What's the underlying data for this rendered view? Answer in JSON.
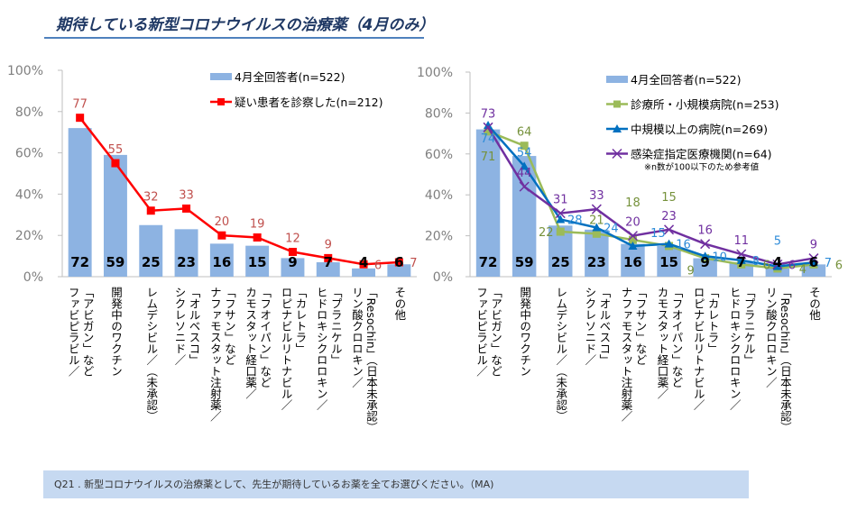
{
  "title": "期待している新型コロナウイルスの治療薬（4月のみ）",
  "footer": "Q21 . 新型コロナウイルスの治療薬として、先生が期待しているお薬を全てお選びください。（MA)",
  "chart_data": [
    {
      "type": "bar+line",
      "category_lines": [
        [
          "「アビガン」など",
          "ファビピラビル／"
        ],
        [
          "開発中のワクチン",
          ""
        ],
        [
          "レムデシビル／（未承認）",
          ""
        ],
        [
          "「オルベスコ」",
          "シクレソニド／"
        ],
        [
          "「フサン」など",
          "ナファモスタット注射薬／"
        ],
        [
          "「フオイパン」など",
          "カモスタット経口薬／"
        ],
        [
          "「カレトラ」",
          "ロピナビルリトナビル／"
        ],
        [
          "「プラニケル」",
          "ヒドロキシクロロキン／"
        ],
        [
          "「Resochin」（日本未承認）",
          "リン酸クロロキン／"
        ],
        [
          "その他",
          ""
        ]
      ],
      "y_ticks": [
        "0%",
        "20%",
        "40%",
        "60%",
        "80%",
        "100%"
      ],
      "ylim": [
        0,
        100
      ],
      "bars": {
        "name": "4月全回答者(n=522)",
        "color": "#8db3e2",
        "values": [
          72,
          59,
          25,
          23,
          16,
          15,
          9,
          7,
          4,
          6
        ]
      },
      "lines": [
        {
          "name": "疑い患者を診察した(n=212)",
          "color": "#ff0000",
          "label_color": "#c0504d",
          "marker": "square",
          "values": [
            77,
            55,
            32,
            33,
            20,
            19,
            12,
            9,
            6,
            7
          ]
        }
      ],
      "legend": "top-right",
      "grid": false
    },
    {
      "type": "bar+line",
      "category_lines": [
        [
          "「アビガン」など",
          "ファビピラビル／"
        ],
        [
          "開発中のワクチン",
          ""
        ],
        [
          "レムデシビル／（未承認）",
          ""
        ],
        [
          "「オルベスコ」",
          "シクレソニド／"
        ],
        [
          "「フサン」など",
          "ナファモスタット注射薬／"
        ],
        [
          "「フオイパン」など",
          "カモスタット経口薬／"
        ],
        [
          "「カレトラ」",
          "ロピナビルリトナビル／"
        ],
        [
          "「プラニケル」",
          "ヒドロキシクロロキン／"
        ],
        [
          "「Resochin」（日本未承認）",
          "リン酸クロロキン／"
        ],
        [
          "その他",
          ""
        ]
      ],
      "y_ticks": [
        "0%",
        "20%",
        "40%",
        "60%",
        "80%",
        "100%"
      ],
      "ylim": [
        0,
        100
      ],
      "bars": {
        "name": "4月全回答者(n=522)",
        "color": "#8db3e2",
        "values": [
          72,
          59,
          25,
          23,
          16,
          15,
          9,
          7,
          4,
          6
        ]
      },
      "lines": [
        {
          "name": "診療所・小規模病院(n=253)",
          "color": "#9bbb59",
          "label_color": "#76923c",
          "marker": "square",
          "values": [
            71,
            64,
            22,
            21,
            18,
            15,
            9,
            6,
            4,
            6
          ]
        },
        {
          "name": "中規模以上の病院(n=269)",
          "color": "#0070c0",
          "label_color": "#2e8bd8",
          "marker": "triangle",
          "values": [
            74,
            54,
            28,
            24,
            15,
            16,
            10,
            8,
            5,
            7
          ]
        },
        {
          "name": "感染症指定医療機関(n=64)",
          "color": "#7030a0",
          "label_color": "#7030a0",
          "marker": "x",
          "values": [
            73,
            44,
            31,
            33,
            20,
            23,
            16,
            11,
            6,
            9
          ]
        }
      ],
      "note": "※n数が100以下のため参考値",
      "legend": "top-right",
      "grid": false
    }
  ]
}
